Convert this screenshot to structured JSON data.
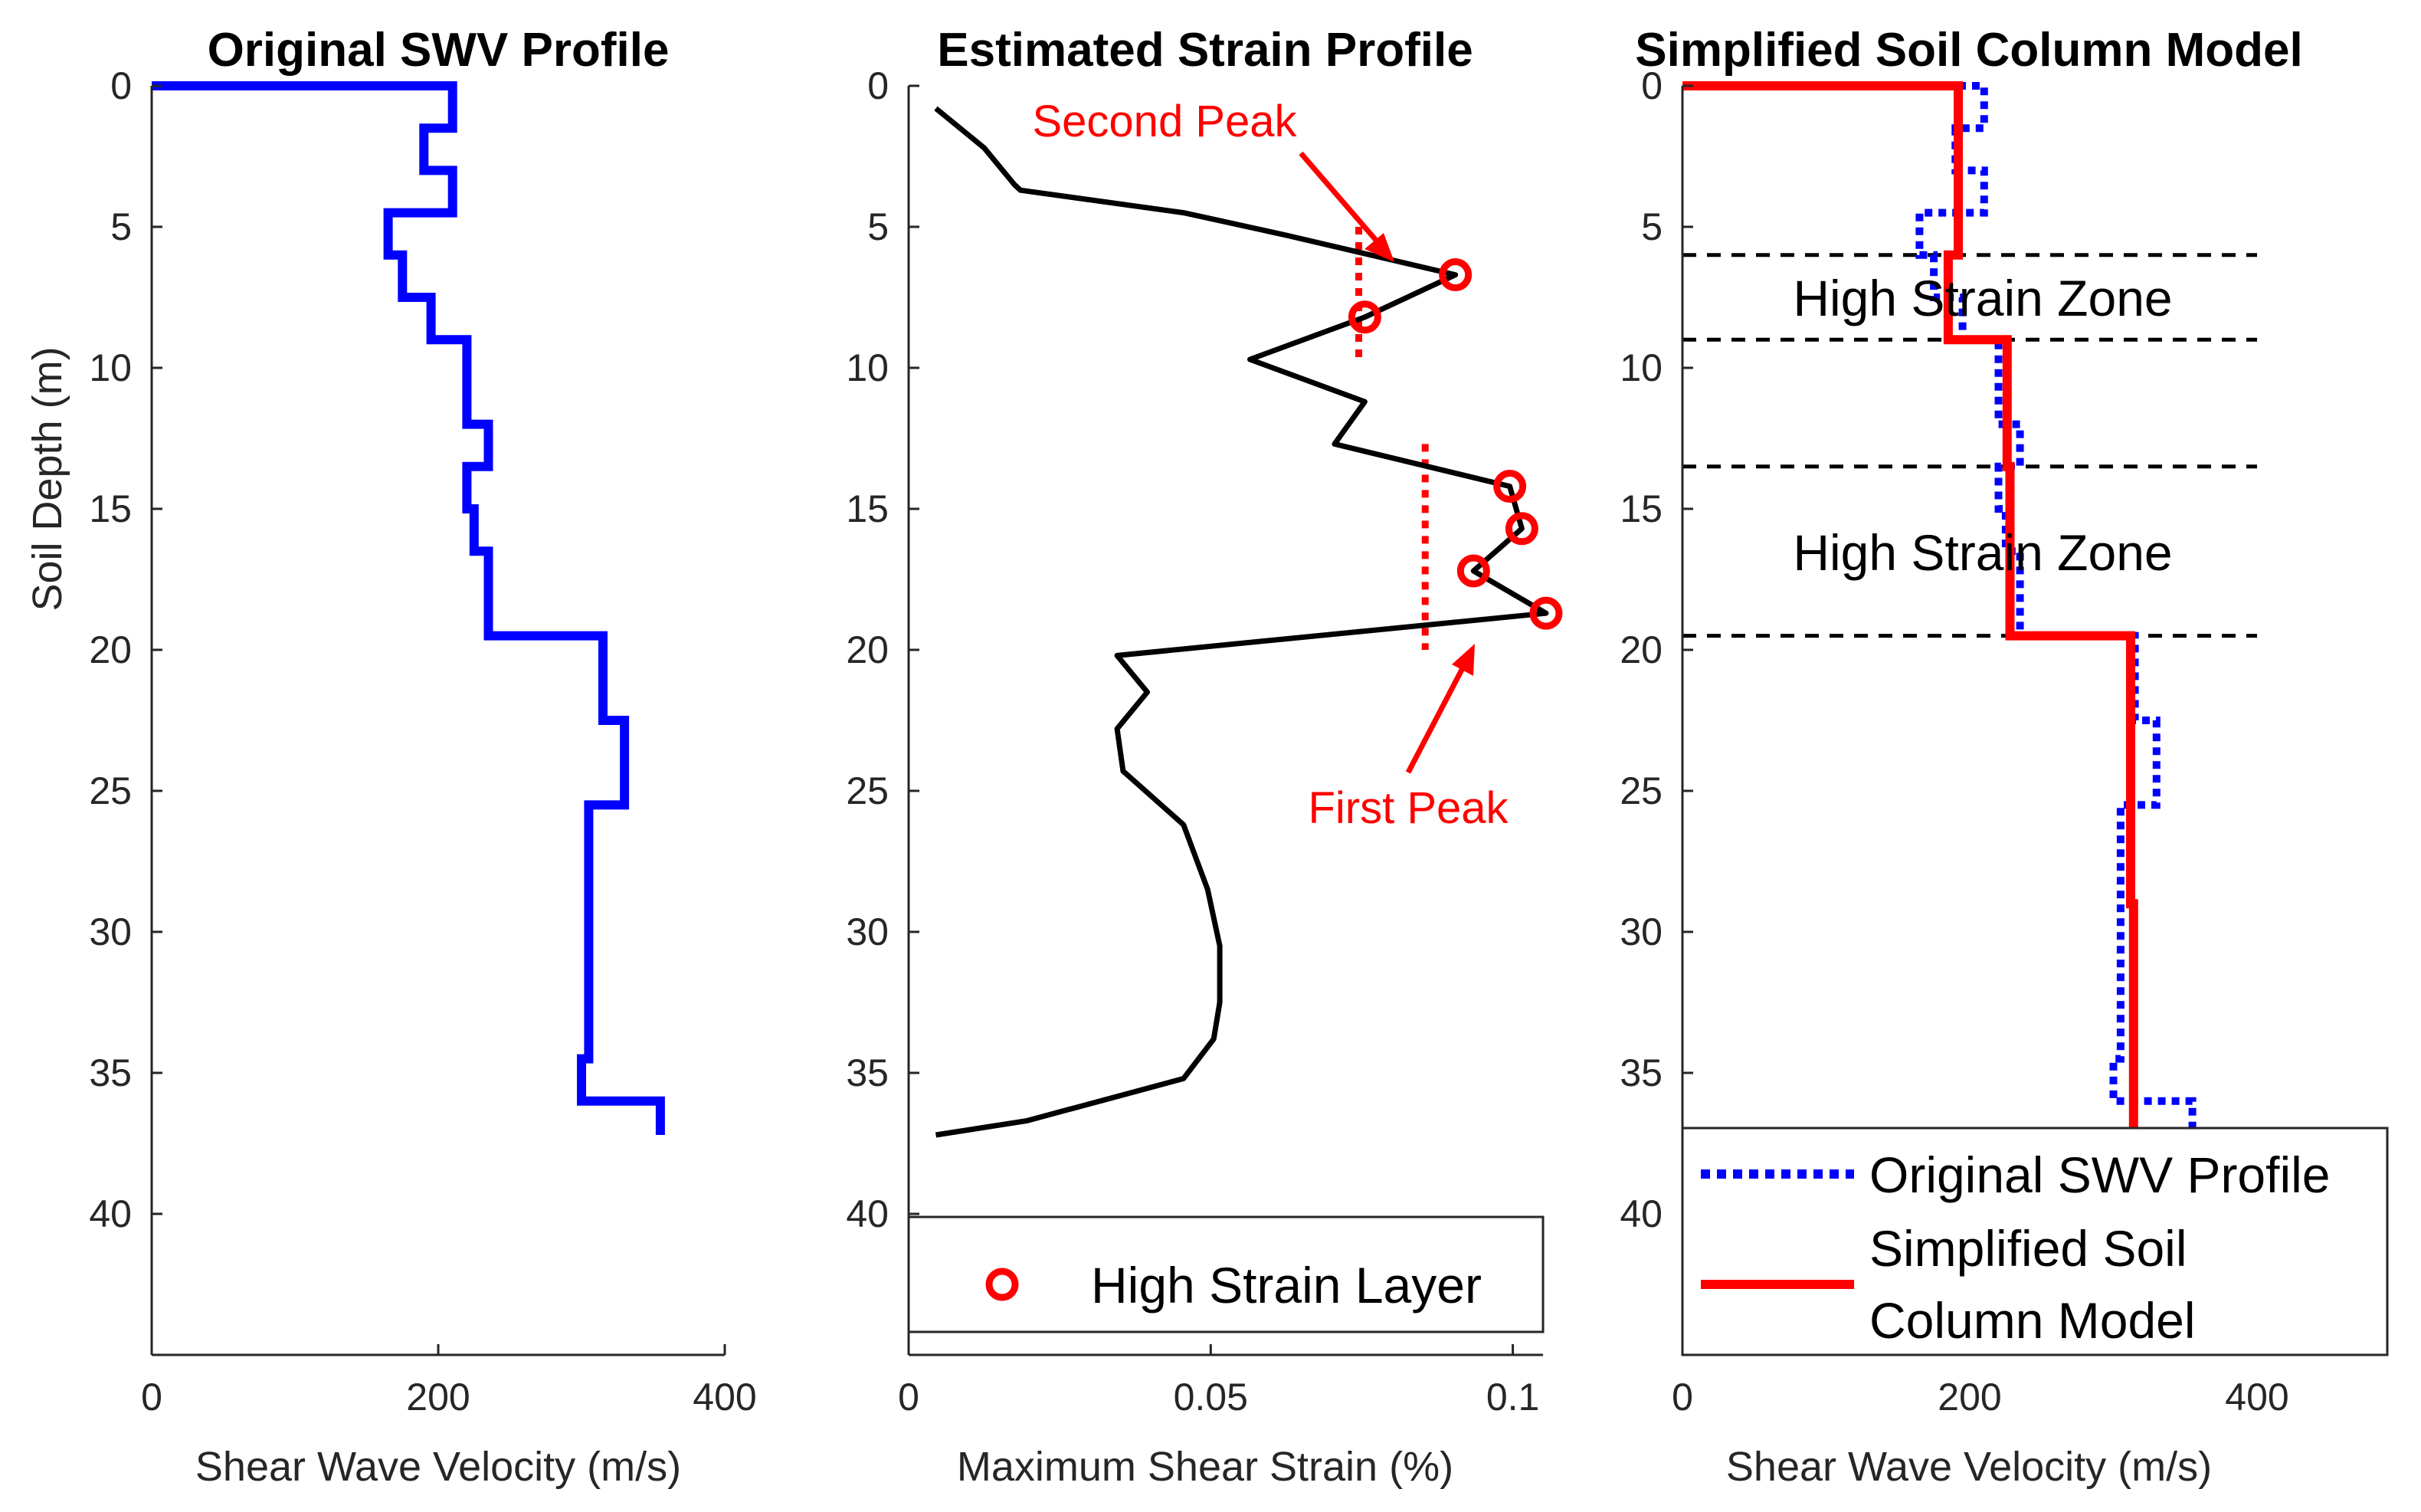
{
  "chart_data": [
    {
      "type": "line",
      "title": "Original SWV Profile",
      "xlabel": "Shear Wave Velocity (m/s)",
      "ylabel": "Soil Depth (m)",
      "xlim": [
        0,
        400
      ],
      "ylim": [
        0,
        45
      ],
      "y_reversed": true,
      "xticks": [
        "0",
        "200",
        "400"
      ],
      "yticks": [
        "0",
        "5",
        "10",
        "15",
        "20",
        "25",
        "30",
        "35",
        "40"
      ],
      "series": [
        {
          "name": "Original SWV Profile",
          "color": "#0000ff",
          "style": "solid",
          "x": [
            0,
            210,
            210,
            190,
            190,
            210,
            210,
            165,
            165,
            175,
            175,
            195,
            195,
            220,
            220,
            235,
            235,
            220,
            220,
            225,
            225,
            235,
            235,
            315,
            315,
            330,
            330,
            305,
            305,
            300,
            300,
            355,
            355
          ],
          "y": [
            0,
            0,
            1.5,
            1.5,
            3,
            3,
            4.5,
            4.5,
            6,
            6,
            7.5,
            7.5,
            9,
            9,
            12,
            12,
            13.5,
            13.5,
            15,
            15,
            16.5,
            16.5,
            19.5,
            19.5,
            22.5,
            22.5,
            25.5,
            25.5,
            34.5,
            34.5,
            36,
            36,
            37.2
          ]
        }
      ]
    },
    {
      "type": "line",
      "title": "Estimated Strain Profile",
      "xlabel": "Maximum Shear Strain (%)",
      "ylabel": "",
      "xlim": [
        0,
        0.105
      ],
      "ylim": [
        0,
        45
      ],
      "y_reversed": true,
      "xticks": [
        "0",
        "0.05",
        "0.1"
      ],
      "xtick_values": [
        0,
        0.05,
        0.1
      ],
      "yticks": [
        "0",
        "5",
        "10",
        "15",
        "20",
        "25",
        "30",
        "35",
        "40"
      ],
      "series": [
        {
          "name": "Strain",
          "color": "#000000",
          "x": [
            0.0045,
            0.0125,
            0.0175,
            0.0185,
            0.0455,
            0.0625,
            0.0905,
            0.0755,
            0.0565,
            0.0755,
            0.0705,
            0.0995,
            0.1015,
            0.0935,
            0.1055,
            0.0345,
            0.0395,
            0.0345,
            0.0355,
            0.0455,
            0.0495,
            0.0515,
            0.0515,
            0.0505,
            0.0455,
            0.0195,
            0.0045
          ],
          "y": [
            0.8,
            2.2,
            3.5,
            3.7,
            4.5,
            5.3,
            6.7,
            8.2,
            9.7,
            11.2,
            12.7,
            14.2,
            15.7,
            17.2,
            18.7,
            20.2,
            21.5,
            22.8,
            24.3,
            26.2,
            28.5,
            30.5,
            32.5,
            33.8,
            35.2,
            36.7,
            37.2
          ]
        },
        {
          "name": "High Strain Layer",
          "color": "#ff0000",
          "marker": "circle",
          "x": [
            0.0905,
            0.0755,
            0.0995,
            0.1015,
            0.0935,
            0.1055
          ],
          "y": [
            6.7,
            8.2,
            14.2,
            15.7,
            17.2,
            18.7
          ]
        }
      ],
      "dotted_lines": [
        {
          "x": 0.0745,
          "y": [
            5,
            9.7
          ]
        },
        {
          "x": 0.0855,
          "y": [
            12.7,
            20
          ]
        }
      ],
      "annotations": [
        {
          "text": "Second Peak",
          "color": "#ff0000",
          "points_to": [
            0.0905,
            6.7
          ]
        },
        {
          "text": "First Peak",
          "color": "#ff0000",
          "points_to": [
            0.1055,
            18.7
          ]
        }
      ],
      "legend": {
        "entries": [
          "High Strain Layer"
        ],
        "location": "bottom"
      }
    },
    {
      "type": "line",
      "title": "Simplified Soil Column Model",
      "xlabel": "Shear Wave Velocity (m/s)",
      "ylabel": "",
      "xlim": [
        0,
        400
      ],
      "ylim": [
        0,
        45
      ],
      "y_reversed": true,
      "xticks": [
        "0",
        "200",
        "400"
      ],
      "yticks": [
        "0",
        "5",
        "10",
        "15",
        "20",
        "25",
        "30",
        "35",
        "40"
      ],
      "series": [
        {
          "name": "Original SWV Profile",
          "color": "#0000ff",
          "style": "dotted",
          "x": [
            0,
            210,
            210,
            190,
            190,
            210,
            210,
            165,
            165,
            175,
            175,
            195,
            195,
            220,
            220,
            235,
            235,
            220,
            220,
            225,
            225,
            235,
            235,
            315,
            315,
            330,
            330,
            305,
            305,
            300,
            300,
            355,
            355
          ],
          "y": [
            0,
            0,
            1.5,
            1.5,
            3,
            3,
            4.5,
            4.5,
            6,
            6,
            7.5,
            7.5,
            9,
            9,
            12,
            12,
            13.5,
            13.5,
            15,
            15,
            16.5,
            16.5,
            19.5,
            19.5,
            22.5,
            22.5,
            25.5,
            25.5,
            34.5,
            34.5,
            36,
            36,
            37.2
          ]
        },
        {
          "name": "Simplified Soil Column Model",
          "color": "#ff0000",
          "style": "solid",
          "x": [
            0,
            192,
            192,
            185,
            185,
            226,
            226,
            228,
            228,
            312,
            312,
            314,
            314
          ],
          "y": [
            0,
            0,
            6,
            6,
            9,
            9,
            13.5,
            13.5,
            19.5,
            19.5,
            29,
            29,
            37.2
          ]
        }
      ],
      "dashed_lines_y": [
        6,
        9,
        13.5,
        19.5
      ],
      "annotations": [
        {
          "text": "High Strain Zone",
          "color": "#000000",
          "x": 0.52,
          "y": 7.5
        },
        {
          "text": "High Strain Zone",
          "color": "#000000",
          "x": 0.52,
          "y": 16.5
        }
      ],
      "legend": {
        "entries": [
          "Original SWV Profile",
          "Simplified Soil Column Model"
        ],
        "entry_lines": [
          [
            "Original SWV Profile"
          ],
          [
            "Simplified Soil",
            "Column Model"
          ]
        ],
        "location": "bottom"
      }
    }
  ]
}
